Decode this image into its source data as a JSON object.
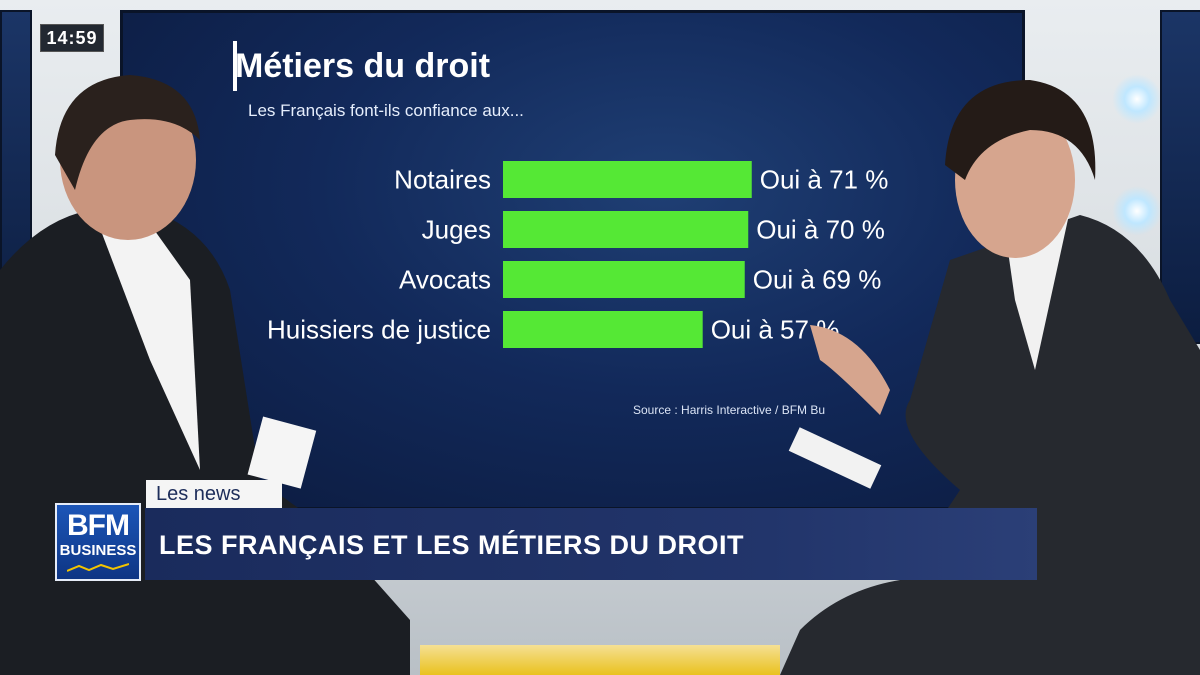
{
  "ticker": {
    "time": "14:59"
  },
  "chart_data": {
    "type": "bar",
    "orientation": "horizontal",
    "title": "Métiers du droit",
    "subtitle": "Les Français font-ils confiance aux...",
    "categories": [
      "Notaires",
      "Juges",
      "Avocats",
      "Huissiers de justice"
    ],
    "values": [
      71,
      70,
      69,
      57
    ],
    "value_labels": [
      "Oui à 71 %",
      "Oui à 70 %",
      "Oui à 69 %",
      "Oui à 57 %"
    ],
    "xlim": [
      0,
      100
    ],
    "grid": false,
    "bar_color": "#55e835",
    "source": "Source : Harris Interactive / BFM Bu"
  },
  "lower_third": {
    "tag": "Les news",
    "headline": "LES FRANÇAIS ET LES MÉTIERS DU DROIT",
    "logo_top": "BFM",
    "logo_bottom": "BUSINESS"
  },
  "colors": {
    "banner": "#1a2b5c",
    "screen": "#12295a",
    "bar": "#55e835"
  }
}
